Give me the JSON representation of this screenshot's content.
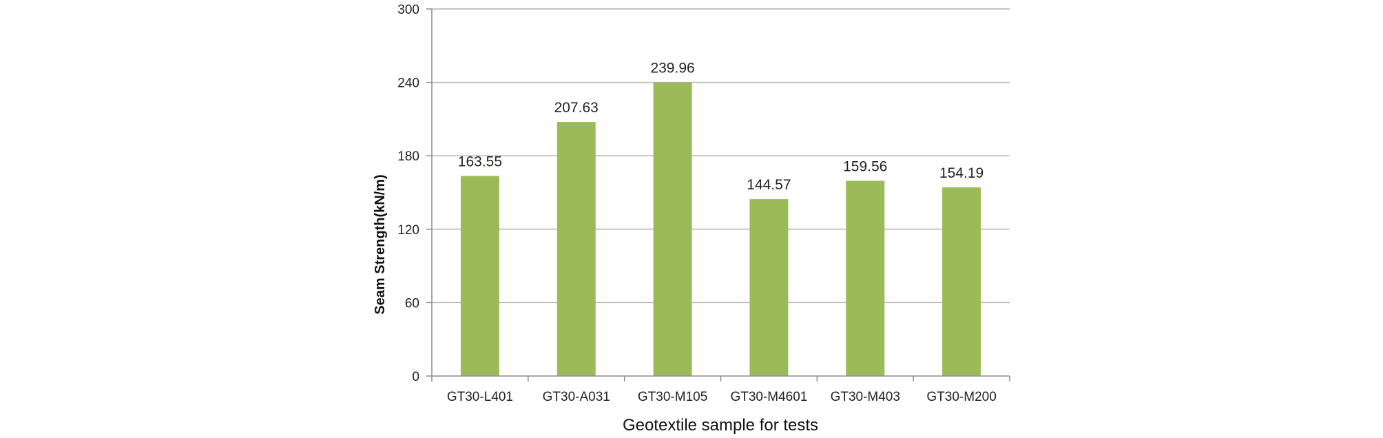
{
  "chart_data": {
    "type": "bar",
    "categories": [
      "GT30-L401",
      "GT30-A031",
      "GT30-M105",
      "GT30-M4601",
      "GT30-M403",
      "GT30-M200"
    ],
    "values": [
      163.55,
      207.63,
      239.96,
      144.57,
      159.56,
      154.19
    ],
    "data_labels": [
      "163.55",
      "207.63",
      "239.96",
      "144.57",
      "159.56",
      "154.19"
    ],
    "title": "",
    "xlabel": "Geotextile sample for tests",
    "ylabel": "Seam Strength(kN/m)",
    "ylim": [
      0,
      300
    ],
    "yticks": [
      "0",
      "60",
      "120",
      "180",
      "240",
      "300"
    ],
    "grid": true,
    "legend": "none",
    "bar_color": "#9bbb59",
    "grid_color": "#b3b3b3",
    "axis_color": "#8c8c8c"
  }
}
